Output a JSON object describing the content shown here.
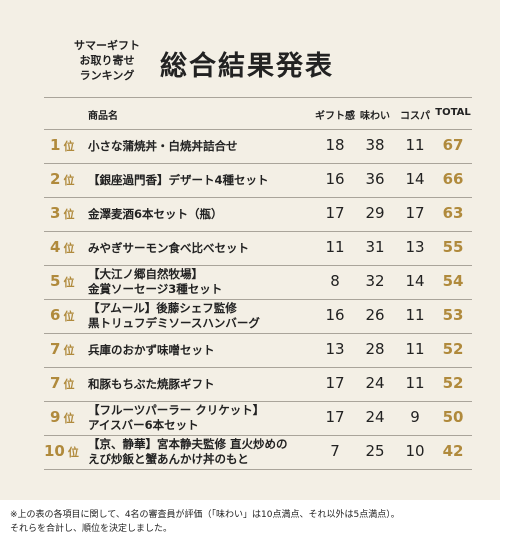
{
  "header": {
    "subtitle_lines": [
      "サマーギフト",
      "お取り寄せ",
      "ランキング"
    ],
    "title": "総合結果発表"
  },
  "table": {
    "columns": [
      "商品名",
      "ギフト感",
      "味わい",
      "コスパ",
      "TOTAL"
    ],
    "rank_unit": "位",
    "rows": [
      {
        "rank": 1,
        "name": [
          "小さな蒲焼丼・白焼丼詰合せ"
        ],
        "scores": [
          18,
          38,
          11,
          67
        ]
      },
      {
        "rank": 2,
        "name": [
          "【銀座過門香】デザート4種セット"
        ],
        "scores": [
          16,
          36,
          14,
          66
        ]
      },
      {
        "rank": 3,
        "name": [
          "金澤麦酒6本セット（瓶）"
        ],
        "scores": [
          17,
          29,
          17,
          63
        ]
      },
      {
        "rank": 4,
        "name": [
          "みやぎサーモン食べ比べセット"
        ],
        "scores": [
          11,
          31,
          13,
          55
        ]
      },
      {
        "rank": 5,
        "name": [
          "【大江ノ郷自然牧場】",
          "金賞ソーセージ3種セット"
        ],
        "scores": [
          8,
          32,
          14,
          54
        ]
      },
      {
        "rank": 6,
        "name": [
          "【アムール】後藤シェフ監修",
          "黒トリュフデミソースハンバーグ"
        ],
        "scores": [
          16,
          26,
          11,
          53
        ]
      },
      {
        "rank": 7,
        "name": [
          "兵庫のおかず味噌セット"
        ],
        "scores": [
          13,
          28,
          11,
          52
        ]
      },
      {
        "rank": 7,
        "name": [
          "和豚もちぶた焼豚ギフト"
        ],
        "scores": [
          17,
          24,
          11,
          52
        ]
      },
      {
        "rank": 9,
        "name": [
          "【フルーツパーラー クリケット】",
          "アイスバー6本セット"
        ],
        "scores": [
          17,
          24,
          9,
          50
        ]
      },
      {
        "rank": 10,
        "name": [
          "【京、静華】宮本静夫監修 直火炒めの",
          "えび炒飯と蟹あんかけ丼のもと"
        ],
        "scores": [
          7,
          25,
          10,
          42
        ]
      }
    ]
  },
  "footnote": [
    "※上の表の各項目に関して、4名の審査員が評価（「味わい」は10点満点、それ以外は5点満点）。",
    "それらを合計し、順位を決定しました。"
  ]
}
